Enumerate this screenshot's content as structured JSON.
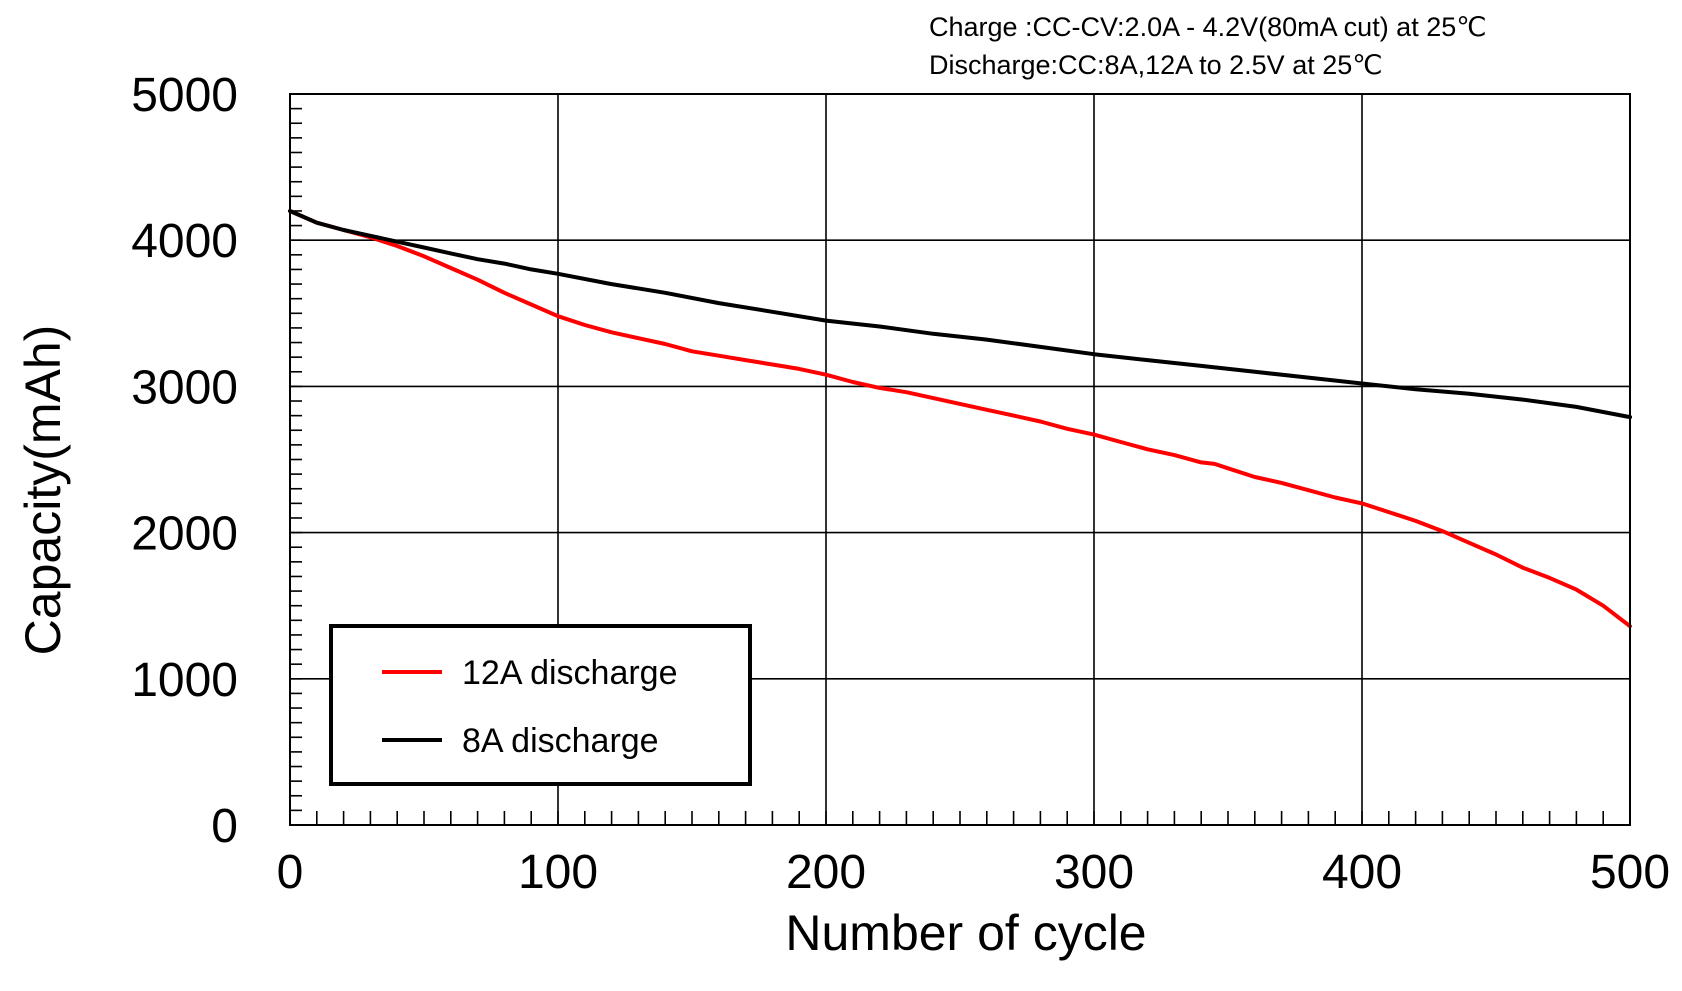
{
  "chart_data": {
    "type": "line",
    "title": "",
    "annotations": [
      "Charge :CC-CV:2.0A - 4.2V(80mA  cut) at 25℃",
      "Discharge:CC:8A,12A  to  2.5V  at  25℃"
    ],
    "xlabel": "Number of  cycle",
    "ylabel": "Capacity(mAh)",
    "xlim": [
      0,
      500
    ],
    "ylim": [
      0,
      5000
    ],
    "xticks": [
      0,
      100,
      200,
      300,
      400,
      500
    ],
    "yticks": [
      0,
      1000,
      2000,
      3000,
      4000,
      5000
    ],
    "x_tick_labels": [
      "0",
      "100",
      "200",
      "300",
      "400",
      "500"
    ],
    "y_tick_labels": [
      "0",
      "1000",
      "2000",
      "3000",
      "4000",
      "5000"
    ],
    "grid": true,
    "legend_position": "bottom-left",
    "series": [
      {
        "name": "12A discharge",
        "color": "#ff0000",
        "x": [
          0,
          10,
          20,
          30,
          40,
          50,
          60,
          70,
          80,
          90,
          100,
          110,
          120,
          130,
          140,
          150,
          160,
          170,
          180,
          190,
          200,
          210,
          220,
          230,
          240,
          250,
          260,
          270,
          280,
          290,
          300,
          310,
          320,
          330,
          340,
          345,
          350,
          360,
          370,
          380,
          390,
          400,
          410,
          420,
          430,
          440,
          450,
          460,
          470,
          480,
          490,
          500
        ],
        "values": [
          4200,
          4120,
          4070,
          4020,
          3960,
          3890,
          3810,
          3730,
          3640,
          3560,
          3480,
          3420,
          3370,
          3330,
          3290,
          3240,
          3210,
          3180,
          3150,
          3120,
          3080,
          3030,
          2990,
          2960,
          2920,
          2880,
          2840,
          2800,
          2760,
          2710,
          2670,
          2620,
          2570,
          2530,
          2480,
          2470,
          2440,
          2380,
          2340,
          2290,
          2240,
          2200,
          2140,
          2080,
          2010,
          1930,
          1850,
          1760,
          1690,
          1610,
          1500,
          1360
        ]
      },
      {
        "name": "8A discharge",
        "color": "#000000",
        "x": [
          0,
          10,
          20,
          30,
          40,
          50,
          60,
          70,
          80,
          90,
          100,
          120,
          140,
          160,
          180,
          200,
          220,
          240,
          260,
          280,
          300,
          320,
          340,
          360,
          380,
          400,
          420,
          440,
          460,
          480,
          500
        ],
        "values": [
          4200,
          4120,
          4070,
          4030,
          3990,
          3950,
          3910,
          3870,
          3840,
          3800,
          3770,
          3700,
          3640,
          3570,
          3510,
          3450,
          3410,
          3360,
          3320,
          3270,
          3220,
          3180,
          3140,
          3100,
          3060,
          3020,
          2980,
          2950,
          2910,
          2860,
          2790
        ]
      }
    ]
  }
}
